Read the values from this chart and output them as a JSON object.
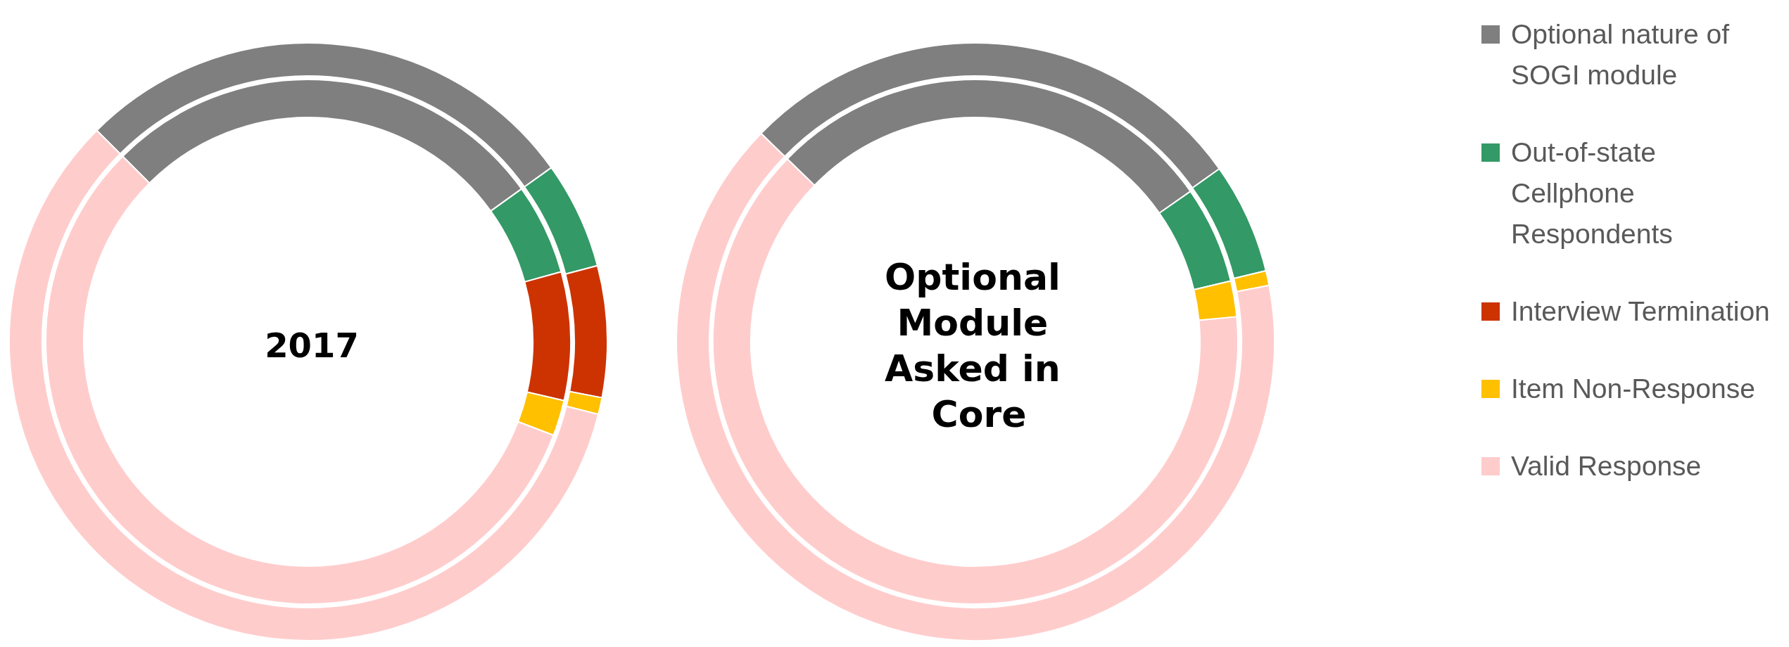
{
  "chart_data": [
    {
      "type": "donut",
      "title": "2017",
      "categories": [
        null,
        null,
        null,
        null,
        null
      ],
      "colors": [
        "#7f7f7f",
        "#339966",
        "#cc3300",
        "#ffc000",
        "#ffcccc"
      ],
      "legend": false,
      "series": [
        {
          "values": [
            27.6,
            5.8,
            7.1,
            0.9,
            58.6
          ]
        },
        {
          "values": [
            27.6,
            5.6,
            7.9,
            2.2,
            56.7
          ]
        }
      ]
    },
    {
      "type": "donut",
      "title": "Optional Module Asked in Core",
      "categories": [
        "Optional nature of SOGI module",
        "Out-of-state Cellphone Respondents",
        "Interview Termination",
        "Item Non-Response",
        "Valid Response"
      ],
      "colors": [
        "#7f7f7f",
        "#339966",
        "#cc3300",
        "#ffc000",
        "#ffcccc"
      ],
      "legend": "right",
      "series": [
        {
          "values": [
            27.9,
            6.0,
            0,
            0.8,
            65.3
          ]
        },
        {
          "values": [
            28.0,
            6.0,
            0,
            2.2,
            63.8
          ]
        }
      ]
    }
  ]
}
